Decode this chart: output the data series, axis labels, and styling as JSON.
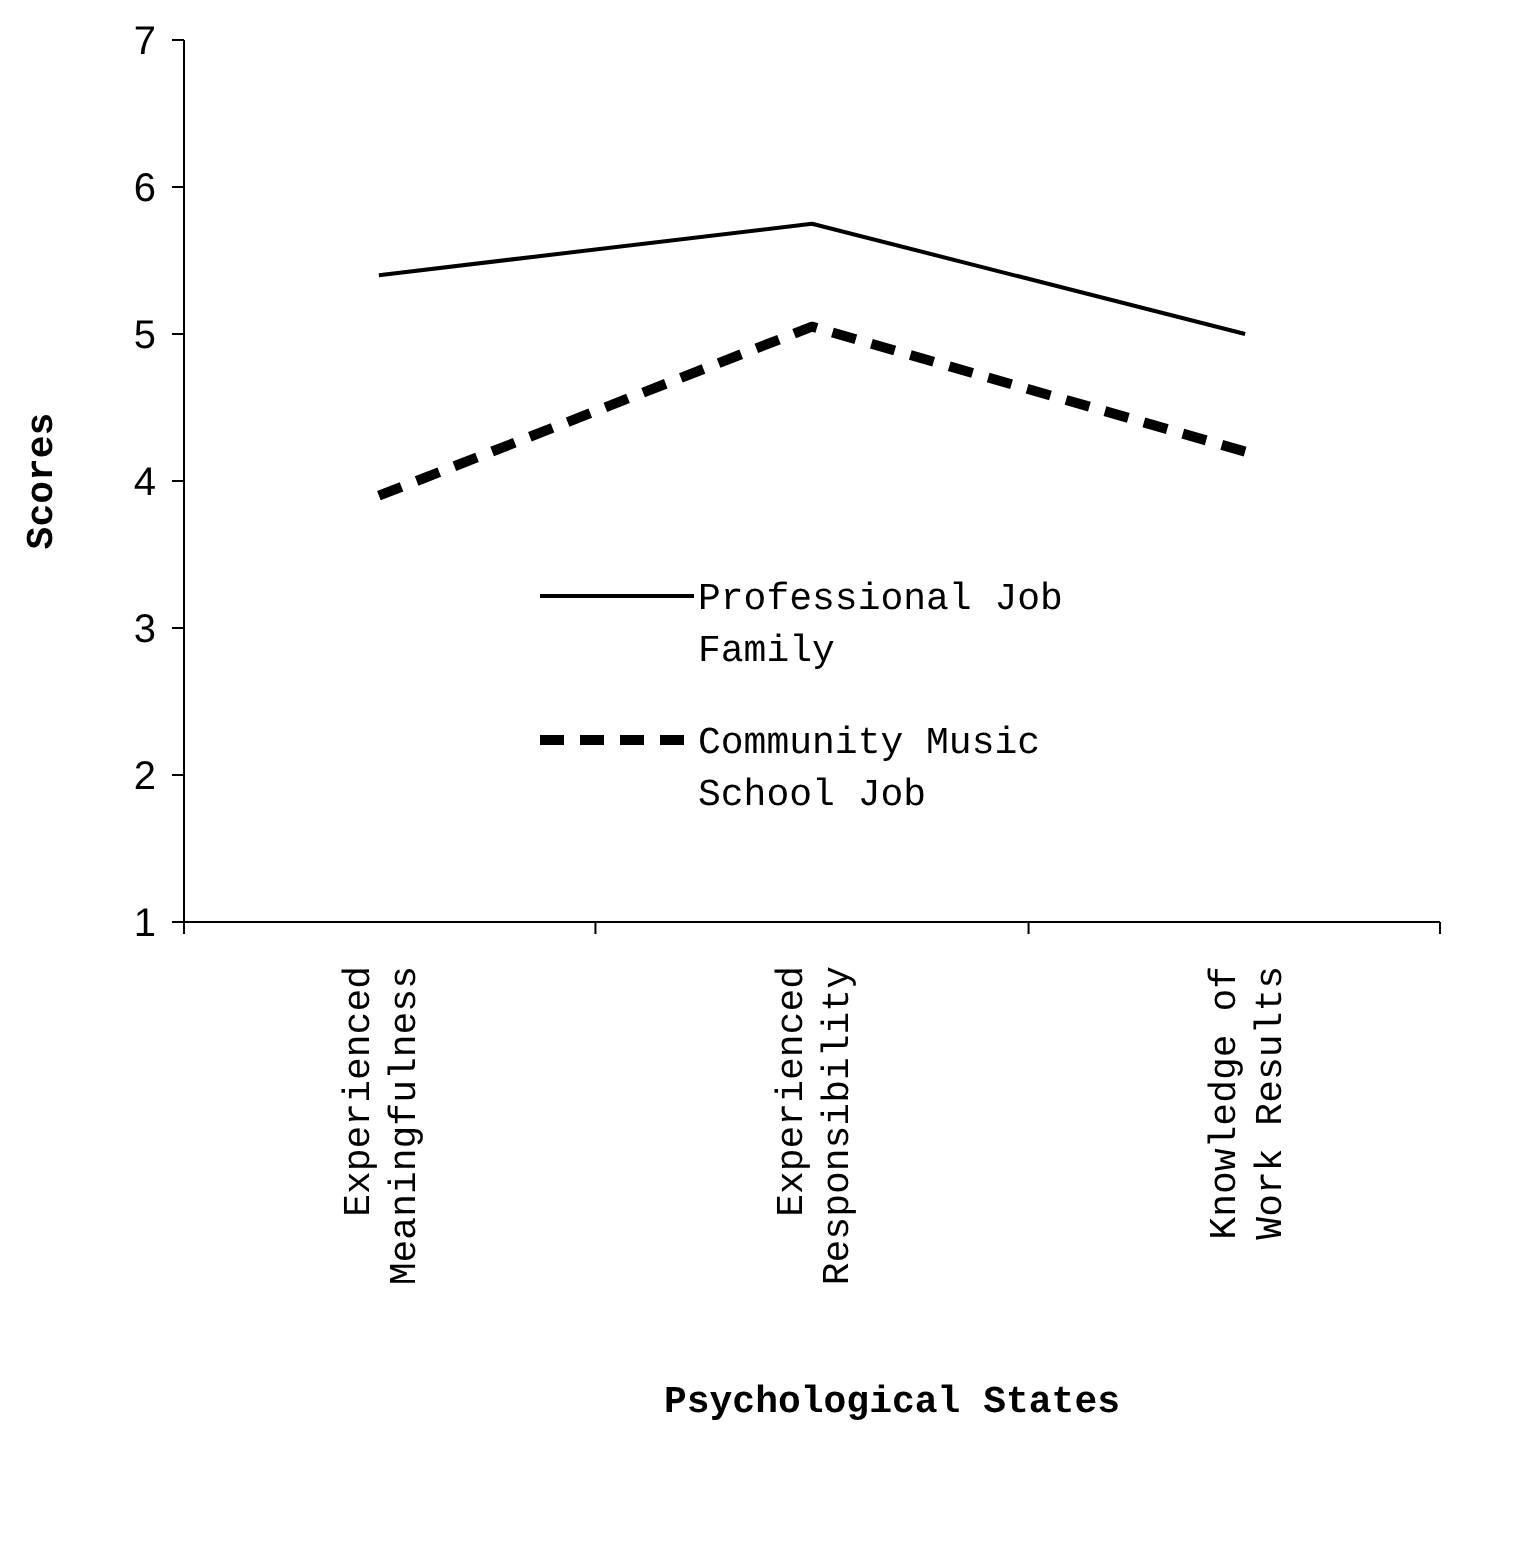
{
  "chart_data": {
    "type": "line",
    "xlabel": "Psychological States",
    "ylabel": "Scores",
    "categories": [
      "Experienced Meaningfulness",
      "Experienced Responsibility",
      "Knowledge of Work Results"
    ],
    "series": [
      {
        "name": "Professional Job Family",
        "color": "#000000",
        "line_style": "solid",
        "values": [
          5.4,
          5.75,
          5.0
        ]
      },
      {
        "name": "Community Music School Job",
        "color": "#000000",
        "line_style": "dashed",
        "values": [
          3.9,
          5.05,
          4.2
        ]
      }
    ],
    "ylim": [
      1,
      7
    ],
    "yticks": [
      1,
      2,
      3,
      4,
      5,
      6,
      7
    ],
    "grid": false,
    "legend": "center",
    "marker": "none"
  }
}
